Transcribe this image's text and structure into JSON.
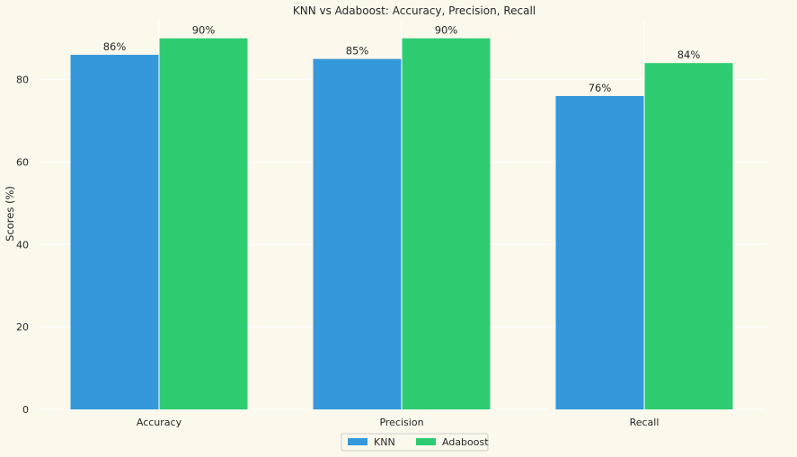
{
  "chart_data": {
    "type": "bar",
    "title": "KNN vs Adaboost: Accuracy, Precision, Recall",
    "xlabel": "",
    "ylabel": "Scores (%)",
    "categories": [
      "Accuracy",
      "Precision",
      "Recall"
    ],
    "series": [
      {
        "name": "KNN",
        "values": [
          86,
          85,
          76
        ],
        "labels": [
          "86%",
          "85%",
          "76%"
        ],
        "color": "#3498db"
      },
      {
        "name": "Adaboost",
        "values": [
          90,
          90,
          84
        ],
        "labels": [
          "90%",
          "90%",
          "84%"
        ],
        "color": "#2ecc71"
      }
    ],
    "ylim": [
      0,
      94.5
    ],
    "yticks": [
      0,
      20,
      40,
      60,
      80
    ],
    "grid": true,
    "legend_position": "bottom-center",
    "background": "#fdf8ec"
  }
}
